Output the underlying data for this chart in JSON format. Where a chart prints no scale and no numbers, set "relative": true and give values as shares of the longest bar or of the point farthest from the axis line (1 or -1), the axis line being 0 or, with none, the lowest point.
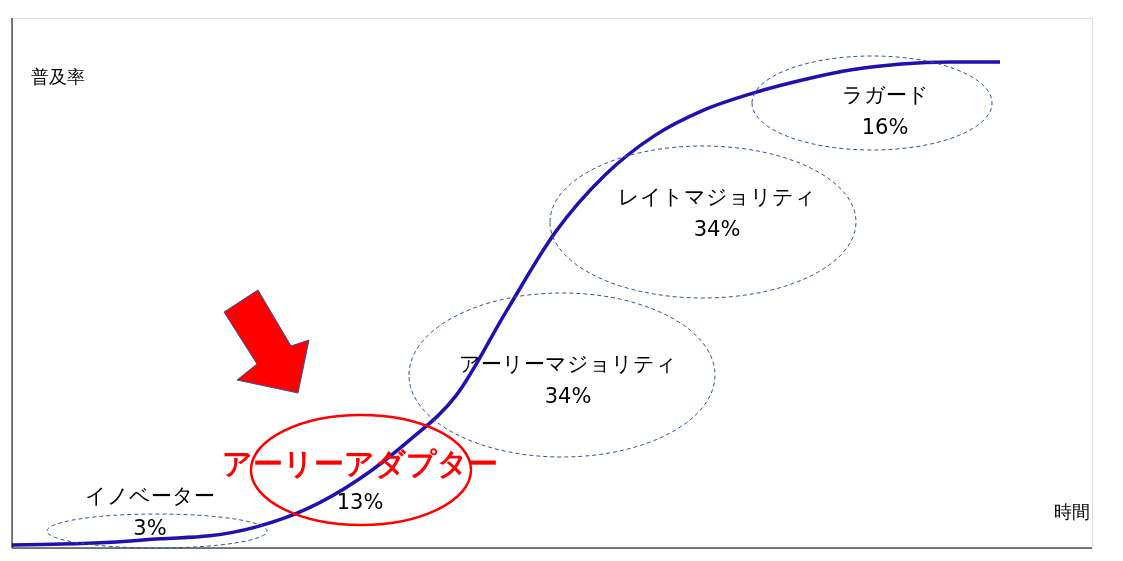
{
  "chart_data": {
    "type": "line",
    "relative": true,
    "categories": [
      null,
      null,
      null,
      null,
      null,
      null,
      null,
      null,
      null,
      null,
      null,
      null,
      null,
      null,
      null,
      null,
      null,
      null,
      null,
      null,
      null
    ],
    "series": [
      {
        "color": "#2010b0",
        "values": [
          0.006,
          0.008,
          0.012,
          0.019,
          0.025,
          0.045,
          0.082,
          0.14,
          0.218,
          0.315,
          0.486,
          0.65,
          0.767,
          0.848,
          0.901,
          0.936,
          0.963,
          0.984,
          0.996,
          1.0,
          1.0
        ]
      }
    ],
    "xlabel": "時間",
    "ylabel": "普及率",
    "annotations": [
      "イノベーター\n3%",
      "13%",
      "アーリーアダプター",
      "アーリーマジョリティ\n34%",
      "レイトマジョリティ\n34%",
      "ラガード\n16%"
    ],
    "line_style": "solid",
    "marker": "none"
  }
}
